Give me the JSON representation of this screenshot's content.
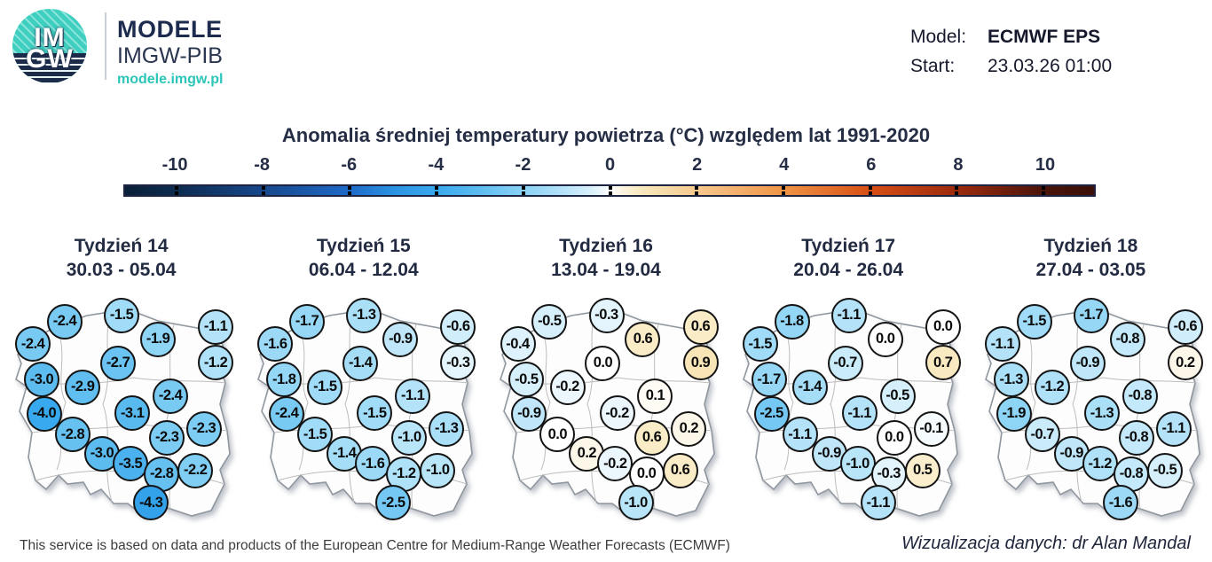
{
  "header": {
    "logo": {
      "line1": "IM",
      "line2": "GW",
      "title": "MODELE",
      "subtitle": "IMGW-PIB",
      "url": "modele.imgw.pl"
    },
    "model_label": "Model:",
    "model_value": "ECMWF EPS",
    "start_label": "Start:",
    "start_value": "23.03.26 01:00"
  },
  "colors": {
    "accent_teal": "#2cc5b8",
    "navy_text": "#252e45",
    "bar_border": "#1d2340",
    "bar_end_left": "#0a2038",
    "bar_end_right": "#3a1008",
    "circle_border": "#141414",
    "map_fill": "#fdfdfd",
    "country_border": "#8f969e",
    "region_border": "#bcbcbc",
    "colormap": [
      [
        -10,
        "#0d2c50"
      ],
      [
        -8,
        "#17488c"
      ],
      [
        -6,
        "#1e6ac8"
      ],
      [
        -5,
        "#2b92e2"
      ],
      [
        -4,
        "#38a9ee"
      ],
      [
        -3.5,
        "#4bb2ef"
      ],
      [
        -3,
        "#5cbcf0"
      ],
      [
        -2.5,
        "#74c8f3"
      ],
      [
        -2,
        "#8ad2f5"
      ],
      [
        -1.5,
        "#a0dbf7"
      ],
      [
        -1,
        "#b9e5f9"
      ],
      [
        -0.5,
        "#d5effb"
      ],
      [
        -0.2,
        "#ecf7fd"
      ],
      [
        0,
        "#ffffff"
      ],
      [
        0.2,
        "#fdf7ea"
      ],
      [
        0.5,
        "#faeecd"
      ],
      [
        0.7,
        "#f8e9c0"
      ],
      [
        1,
        "#f6e2b2"
      ],
      [
        2,
        "#f7c98e"
      ],
      [
        4,
        "#ef9445"
      ],
      [
        6,
        "#d84f15"
      ],
      [
        8,
        "#9c2a0e"
      ],
      [
        10,
        "#4a150b"
      ]
    ]
  },
  "chart_data": {
    "type": "scatter",
    "subtype": "map-point-anomaly-grid",
    "title": "Anomalia średniej temperatury powietrza (°C) względem lat 1991-2020",
    "colorbar_ticks": [
      -10,
      -8,
      -6,
      -4,
      -2,
      0,
      2,
      4,
      6,
      8,
      10
    ],
    "value_range": [
      -10,
      10
    ],
    "legend_position": "top",
    "station_positions_pct": [
      [
        26.7,
        12.2
      ],
      [
        50.2,
        9.6
      ],
      [
        89.0,
        14.4
      ],
      [
        13.6,
        21.5
      ],
      [
        65.2,
        19.6
      ],
      [
        89.0,
        29.3
      ],
      [
        48.7,
        29.6
      ],
      [
        17.2,
        36.3
      ],
      [
        34.1,
        39.6
      ],
      [
        70.3,
        43.3
      ],
      [
        18.3,
        50.7
      ],
      [
        54.6,
        50.4
      ],
      [
        84.2,
        57.0
      ],
      [
        30.0,
        59.3
      ],
      [
        68.9,
        60.7
      ],
      [
        42.1,
        67.4
      ],
      [
        53.8,
        71.5
      ],
      [
        66.7,
        75.9
      ],
      [
        80.6,
        74.4
      ],
      [
        62.3,
        87.8
      ]
    ],
    "weeks": [
      {
        "label": "Tydzień 14",
        "date_range": "30.03 - 05.04",
        "values": [
          -2.4,
          -1.5,
          -1.1,
          -2.4,
          -1.9,
          -1.2,
          -2.7,
          -3.0,
          -2.9,
          -2.4,
          -4.0,
          -3.1,
          -2.3,
          -2.8,
          -2.3,
          -3.0,
          -3.5,
          -2.8,
          -2.2,
          -4.3
        ]
      },
      {
        "label": "Tydzień 15",
        "date_range": "06.04 - 12.04",
        "values": [
          -1.7,
          -1.3,
          -0.6,
          -1.6,
          -0.9,
          -0.3,
          -1.4,
          -1.8,
          -1.5,
          -1.1,
          -2.4,
          -1.5,
          -1.3,
          -1.5,
          -1.0,
          -1.4,
          -1.6,
          -1.2,
          -1.0,
          -2.5
        ]
      },
      {
        "label": "Tydzień 16",
        "date_range": "13.04 - 19.04",
        "values": [
          -0.5,
          -0.3,
          0.6,
          -0.4,
          0.6,
          0.9,
          0.0,
          -0.5,
          -0.2,
          0.1,
          -0.9,
          -0.2,
          0.2,
          0.0,
          0.6,
          0.2,
          -0.2,
          0.0,
          0.6,
          -1.0
        ]
      },
      {
        "label": "Tydzień 17",
        "date_range": "20.04 - 26.04",
        "values": [
          -1.8,
          -1.1,
          0.0,
          -1.5,
          0.0,
          0.7,
          -0.7,
          -1.7,
          -1.4,
          -0.5,
          -2.5,
          -1.1,
          -0.1,
          -1.1,
          0.0,
          -0.9,
          -1.0,
          -0.3,
          0.5,
          -1.1
        ]
      },
      {
        "label": "Tydzień 18",
        "date_range": "27.04 - 03.05",
        "values": [
          -1.5,
          -1.7,
          -0.6,
          -1.1,
          -0.8,
          0.2,
          -0.9,
          -1.3,
          -1.2,
          -0.8,
          -1.9,
          -1.3,
          -1.1,
          -0.7,
          -0.8,
          -0.9,
          -1.2,
          -0.8,
          -0.5,
          -1.6
        ]
      }
    ]
  },
  "footer": {
    "left": "This service is based on data and products of the European Centre for Medium-Range Weather Forecasts (ECMWF)",
    "right": "Wizualizacja danych: dr Alan Mandal"
  }
}
